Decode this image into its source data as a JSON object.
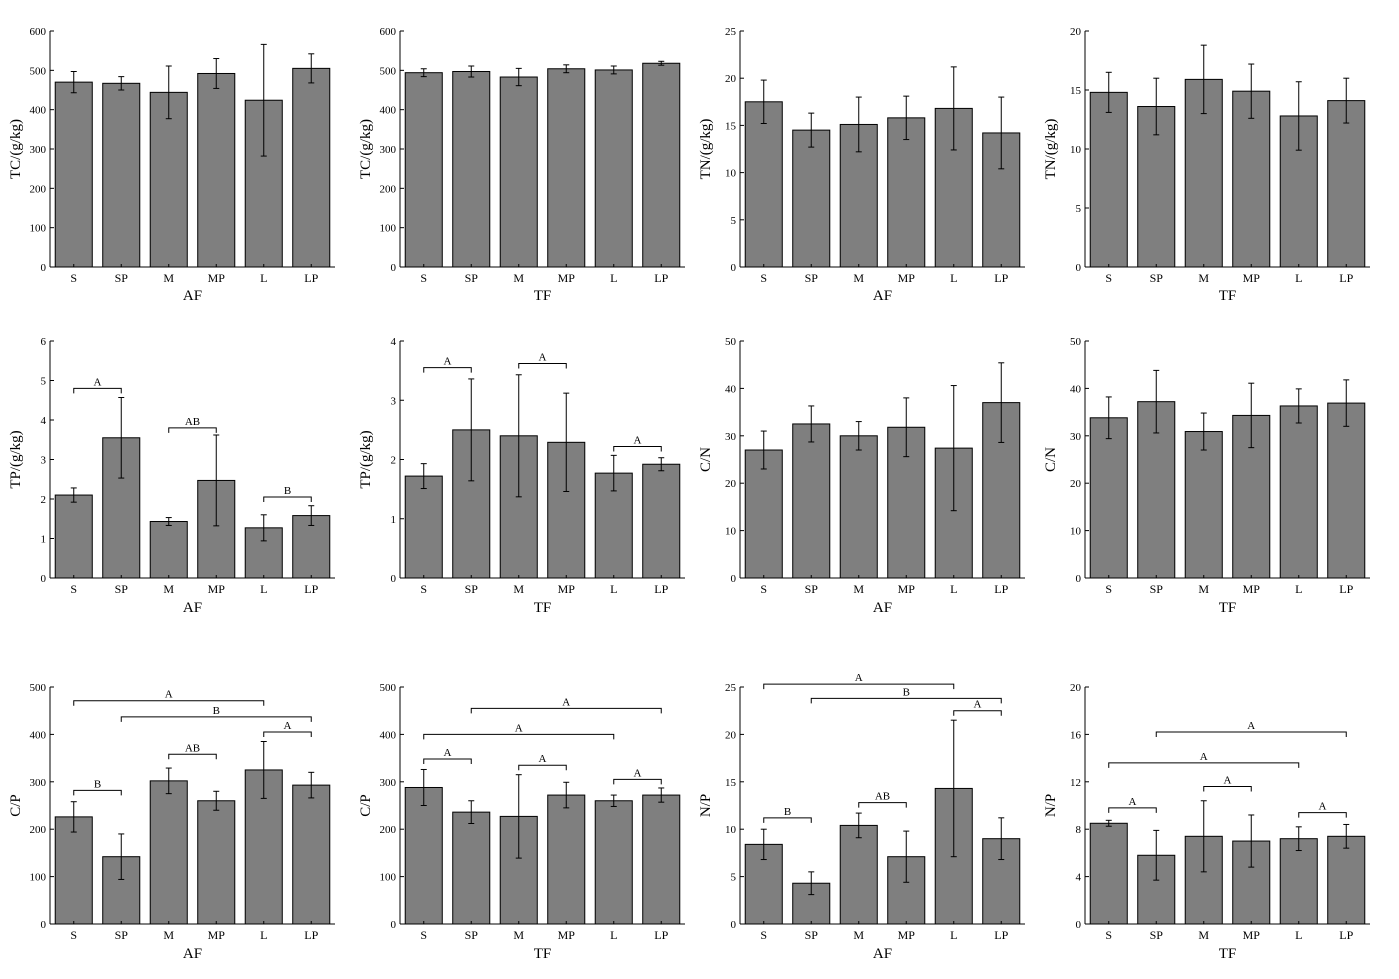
{
  "chart_data": [
    {
      "type": "bar",
      "categories": [
        "S",
        "SP",
        "M",
        "MP",
        "L",
        "LP"
      ],
      "values": [
        470,
        467,
        444,
        492,
        424,
        505
      ],
      "errors": [
        27,
        17,
        67,
        38,
        142,
        37
      ],
      "xlabel": "AF",
      "ylabel": "TC/(g/kg)",
      "ylim": [
        0,
        600
      ],
      "yticks": [
        0,
        100,
        200,
        300,
        400,
        500,
        600
      ],
      "annotations": []
    },
    {
      "type": "bar",
      "categories": [
        "S",
        "SP",
        "M",
        "MP",
        "L",
        "LP"
      ],
      "values": [
        494,
        497,
        483,
        504,
        501,
        518
      ],
      "errors": [
        10,
        14,
        22,
        10,
        10,
        5
      ],
      "xlabel": "TF",
      "ylabel": "TC/(g/kg)",
      "ylim": [
        0,
        600
      ],
      "yticks": [
        0,
        100,
        200,
        300,
        400,
        500,
        600
      ],
      "annotations": []
    },
    {
      "type": "bar",
      "categories": [
        "S",
        "SP",
        "M",
        "MP",
        "L",
        "LP"
      ],
      "values": [
        17.5,
        14.5,
        15.1,
        15.8,
        16.8,
        14.2
      ],
      "errors": [
        2.3,
        1.8,
        2.9,
        2.3,
        4.4,
        3.8
      ],
      "xlabel": "AF",
      "ylabel": "TN/(g/kg)",
      "ylim": [
        0,
        25
      ],
      "yticks": [
        0,
        5,
        10,
        15,
        20,
        25
      ],
      "annotations": []
    },
    {
      "type": "bar",
      "categories": [
        "S",
        "SP",
        "M",
        "MP",
        "L",
        "LP"
      ],
      "values": [
        14.8,
        13.6,
        15.9,
        14.9,
        12.8,
        14.1
      ],
      "errors": [
        1.7,
        2.4,
        2.9,
        2.3,
        2.9,
        1.9
      ],
      "xlabel": "TF",
      "ylabel": "TN/(g/kg)",
      "ylim": [
        0,
        20
      ],
      "yticks": [
        0,
        5,
        10,
        15,
        20
      ],
      "annotations": []
    },
    {
      "type": "bar",
      "categories": [
        "S",
        "SP",
        "M",
        "MP",
        "L",
        "LP"
      ],
      "values": [
        2.1,
        3.55,
        1.43,
        2.47,
        1.27,
        1.58
      ],
      "errors": [
        0.18,
        1.02,
        0.1,
        1.15,
        0.33,
        0.25
      ],
      "xlabel": "AF",
      "ylabel": "TP/(g/kg)",
      "ylim": [
        0,
        6
      ],
      "yticks": [
        0,
        1,
        2,
        3,
        4,
        5,
        6
      ],
      "annotations": [
        {
          "text": "A",
          "from": 0,
          "to": 1,
          "level": 4.8
        },
        {
          "text": "AB",
          "from": 2,
          "to": 3,
          "level": 3.8
        },
        {
          "text": "B",
          "from": 4,
          "to": 5,
          "level": 2.05
        }
      ]
    },
    {
      "type": "bar",
      "categories": [
        "S",
        "SP",
        "M",
        "MP",
        "L",
        "LP"
      ],
      "values": [
        1.72,
        2.5,
        2.4,
        2.29,
        1.77,
        1.92
      ],
      "errors": [
        0.21,
        0.86,
        1.03,
        0.83,
        0.3,
        0.11
      ],
      "xlabel": "TF",
      "ylabel": "TP/(g/kg)",
      "ylim": [
        0,
        4
      ],
      "yticks": [
        0,
        1,
        2,
        3,
        4
      ],
      "annotations": [
        {
          "text": "A",
          "from": 0,
          "to": 1,
          "level": 3.55
        },
        {
          "text": "A",
          "from": 2,
          "to": 3,
          "level": 3.62
        },
        {
          "text": "A",
          "from": 4,
          "to": 5,
          "level": 2.22
        }
      ]
    },
    {
      "type": "bar",
      "categories": [
        "S",
        "SP",
        "M",
        "MP",
        "L",
        "LP"
      ],
      "values": [
        27,
        32.5,
        30,
        31.8,
        27.4,
        37
      ],
      "errors": [
        4,
        3.8,
        3,
        6.2,
        13.2,
        8.4
      ],
      "xlabel": "AF",
      "ylabel": "C/N",
      "ylim": [
        0,
        50
      ],
      "yticks": [
        0,
        10,
        20,
        30,
        40,
        50
      ],
      "annotations": []
    },
    {
      "type": "bar",
      "categories": [
        "S",
        "SP",
        "M",
        "MP",
        "L",
        "LP"
      ],
      "values": [
        33.8,
        37.2,
        30.9,
        34.3,
        36.3,
        36.9
      ],
      "errors": [
        4.4,
        6.6,
        3.9,
        6.8,
        3.6,
        4.9
      ],
      "xlabel": "TF",
      "ylabel": "C/N",
      "ylim": [
        0,
        50
      ],
      "yticks": [
        0,
        10,
        20,
        30,
        40,
        50
      ],
      "annotations": []
    },
    {
      "type": "bar",
      "categories": [
        "S",
        "SP",
        "M",
        "MP",
        "L",
        "LP"
      ],
      "values": [
        226,
        142,
        302,
        260,
        325,
        293
      ],
      "errors": [
        32,
        48,
        27,
        20,
        60,
        27
      ],
      "xlabel": "AF",
      "ylabel": "C/P",
      "ylim": [
        0,
        500
      ],
      "yticks": [
        0,
        100,
        200,
        300,
        400,
        500
      ],
      "annotations": [
        {
          "text": "B",
          "from": 0,
          "to": 1,
          "level": 282
        },
        {
          "text": "AB",
          "from": 2,
          "to": 3,
          "level": 358
        },
        {
          "text": "A",
          "from": 4,
          "to": 5,
          "level": 405
        },
        {
          "text": "B",
          "from": 1,
          "to": 5,
          "level": 437
        },
        {
          "text": "A",
          "from": 0,
          "to": 4,
          "level": 471
        }
      ]
    },
    {
      "type": "bar",
      "categories": [
        "S",
        "SP",
        "M",
        "MP",
        "L",
        "LP"
      ],
      "values": [
        288,
        236,
        227,
        272,
        260,
        272
      ],
      "errors": [
        38,
        24,
        88,
        27,
        12,
        15
      ],
      "xlabel": "TF",
      "ylabel": "C/P",
      "ylim": [
        0,
        500
      ],
      "yticks": [
        0,
        100,
        200,
        300,
        400,
        500
      ],
      "annotations": [
        {
          "text": "A",
          "from": 0,
          "to": 1,
          "level": 348
        },
        {
          "text": "A",
          "from": 2,
          "to": 3,
          "level": 335
        },
        {
          "text": "A",
          "from": 4,
          "to": 5,
          "level": 305
        },
        {
          "text": "A",
          "from": 0,
          "to": 4,
          "level": 400
        },
        {
          "text": "A",
          "from": 1,
          "to": 5,
          "level": 455
        }
      ]
    },
    {
      "type": "bar",
      "categories": [
        "S",
        "SP",
        "M",
        "MP",
        "L",
        "LP"
      ],
      "values": [
        8.4,
        4.3,
        10.4,
        7.1,
        14.3,
        9.0
      ],
      "errors": [
        1.6,
        1.2,
        1.3,
        2.7,
        7.2,
        2.2
      ],
      "xlabel": "AF",
      "ylabel": "N/P",
      "ylim": [
        0,
        25
      ],
      "yticks": [
        0,
        5,
        10,
        15,
        20,
        25
      ],
      "annotations": [
        {
          "text": "B",
          "from": 0,
          "to": 1,
          "level": 11.2
        },
        {
          "text": "AB",
          "from": 2,
          "to": 3,
          "level": 12.8
        },
        {
          "text": "A",
          "from": 4,
          "to": 5,
          "level": 22.5
        },
        {
          "text": "B",
          "from": 1,
          "to": 5,
          "level": 23.8
        },
        {
          "text": "A",
          "from": 0,
          "to": 4,
          "level": 25.3
        }
      ]
    },
    {
      "type": "bar",
      "categories": [
        "S",
        "SP",
        "M",
        "MP",
        "L",
        "LP"
      ],
      "values": [
        8.5,
        5.8,
        7.4,
        7.0,
        7.2,
        7.4
      ],
      "errors": [
        0.25,
        2.1,
        3.0,
        2.2,
        1.0,
        1.0
      ],
      "xlabel": "TF",
      "ylabel": "N/P",
      "ylim": [
        0,
        20
      ],
      "yticks": [
        0,
        4,
        8,
        12,
        16,
        20
      ],
      "annotations": [
        {
          "text": "A",
          "from": 0,
          "to": 1,
          "level": 9.8
        },
        {
          "text": "A",
          "from": 2,
          "to": 3,
          "level": 11.6
        },
        {
          "text": "A",
          "from": 4,
          "to": 5,
          "level": 9.4
        },
        {
          "text": "A",
          "from": 0,
          "to": 4,
          "level": 13.6
        },
        {
          "text": "A",
          "from": 1,
          "to": 5,
          "level": 16.2
        }
      ]
    }
  ]
}
